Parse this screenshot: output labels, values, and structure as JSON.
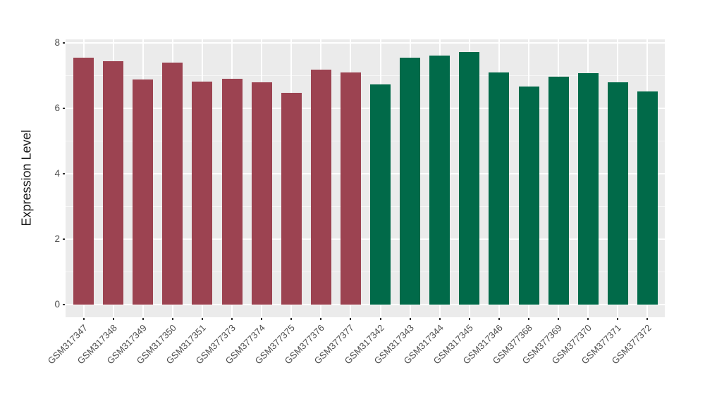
{
  "chart_data": {
    "type": "bar",
    "title": "",
    "xlabel": "",
    "ylabel": "Expression Level",
    "categories": [
      "GSM317347",
      "GSM317348",
      "GSM317349",
      "GSM317350",
      "GSM317351",
      "GSM377373",
      "GSM377374",
      "GSM377375",
      "GSM377376",
      "GSM377377",
      "GSM317342",
      "GSM317343",
      "GSM317344",
      "GSM317345",
      "GSM317346",
      "GSM377368",
      "GSM377369",
      "GSM377370",
      "GSM377371",
      "GSM377372"
    ],
    "values": [
      7.55,
      7.44,
      6.87,
      7.38,
      6.82,
      6.9,
      6.78,
      6.46,
      7.17,
      7.1,
      6.73,
      7.54,
      7.6,
      7.71,
      7.08,
      6.65,
      6.96,
      7.07,
      6.78,
      6.52
    ],
    "bar_colors": [
      "#9C4351",
      "#9C4351",
      "#9C4351",
      "#9C4351",
      "#9C4351",
      "#9C4351",
      "#9C4351",
      "#9C4351",
      "#9C4351",
      "#9C4351",
      "#016A49",
      "#016A49",
      "#016A49",
      "#016A49",
      "#016A49",
      "#016A49",
      "#016A49",
      "#016A49",
      "#016A49",
      "#016A49"
    ],
    "yticks": [
      0,
      2,
      4,
      6,
      8
    ],
    "yticks_minor": [
      1,
      3,
      5,
      7
    ],
    "ylim": [
      -0.39,
      8.1
    ],
    "grid": true,
    "legend_position": "none",
    "panel_background": "#EBEBEB",
    "gridline_color": "#FFFFFF"
  }
}
